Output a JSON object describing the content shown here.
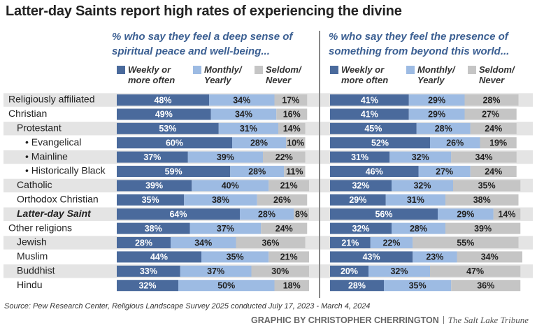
{
  "title": "Latter-day Saints report high rates of experiencing the divine",
  "source": "Source: Pew Research Center, Religious Landscape Survey 2025 conducted July 17, 2023 - March 4, 2024",
  "credit": "GRAPHIC BY CHRISTOPHER CHERRINGTON",
  "publisher": "The Salt Lake Tribune",
  "chart_data": [
    {
      "type": "stacked-bar",
      "orientation": "horizontal",
      "subtitle": "% who say they feel a deep sense of spiritual peace and well-being...",
      "categories": [
        "Religiously affiliated",
        "Christian",
        "Protestant",
        "• Evangelical",
        "• Mainline",
        "• Historically Black",
        "Catholic",
        "Orthodox Christian",
        "Latter-day Saint",
        "Other religions",
        "Jewish",
        "Muslim",
        "Buddhist",
        "Hindu"
      ],
      "xlim": [
        0,
        100
      ],
      "series": [
        {
          "name": "Weekly or more often",
          "color": "#4a6a9c",
          "values": [
            48,
            49,
            53,
            60,
            37,
            59,
            39,
            35,
            64,
            38,
            28,
            44,
            33,
            32
          ],
          "value_labels": [
            "48%",
            "49%",
            "53%",
            "60%",
            "37%",
            "59%",
            "39%",
            "35%",
            "64%",
            "38%",
            "28%",
            "44%",
            "33%",
            "32%"
          ]
        },
        {
          "name": "Monthly/ Yearly",
          "color": "#9dbbe3",
          "values": [
            34,
            34,
            31,
            28,
            39,
            28,
            40,
            38,
            28,
            37,
            34,
            35,
            37,
            50
          ],
          "value_labels": [
            "34%",
            "34%",
            "31%",
            "28%",
            "39%",
            "28%",
            "40%",
            "38%",
            "28%",
            "37%",
            "34%",
            "35%",
            "37%",
            "50%"
          ]
        },
        {
          "name": "Seldom/ Never",
          "color": "#c5c5c5",
          "values": [
            17,
            16,
            14,
            10,
            22,
            11,
            21,
            26,
            8,
            24,
            36,
            21,
            30,
            18
          ],
          "value_labels": [
            "17%",
            "16%",
            "14%",
            "10%",
            "22%",
            "11%",
            "21%",
            "26%",
            "8%",
            "24%",
            "36%",
            "21%",
            "30%",
            "18%"
          ]
        }
      ]
    },
    {
      "type": "stacked-bar",
      "orientation": "horizontal",
      "subtitle": "% who say they feel the presence of something from beyond this world...",
      "xlim": [
        0,
        100
      ],
      "series": [
        {
          "name": "Weekly or more often",
          "color": "#4a6a9c",
          "values": [
            41,
            41,
            45,
            52,
            31,
            46,
            32,
            29,
            56,
            32,
            21,
            43,
            20,
            28
          ],
          "value_labels": [
            "41%",
            "41%",
            "45%",
            "52%",
            "31%",
            "46%",
            "32%",
            "29%",
            "56%",
            "32%",
            "21%",
            "43%",
            "20%",
            "28%"
          ]
        },
        {
          "name": "Monthly/ Yearly",
          "color": "#9dbbe3",
          "values": [
            29,
            29,
            28,
            26,
            32,
            27,
            32,
            31,
            29,
            28,
            22,
            23,
            32,
            35
          ],
          "value_labels": [
            "29%",
            "29%",
            "28%",
            "26%",
            "32%",
            "27%",
            "32%",
            "31%",
            "29%",
            "28%",
            "22%",
            "23%",
            "32%",
            "35%"
          ]
        },
        {
          "name": "Seldom/ Never",
          "color": "#c5c5c5",
          "values": [
            28,
            27,
            24,
            19,
            34,
            24,
            35,
            38,
            14,
            39,
            55,
            34,
            47,
            36
          ],
          "value_labels": [
            "28%",
            "27%",
            "24%",
            "19%",
            "34%",
            "24%",
            "35%",
            "38%",
            "14%",
            "39%",
            "55%",
            "34%",
            "47%",
            "36%"
          ]
        }
      ]
    }
  ]
}
